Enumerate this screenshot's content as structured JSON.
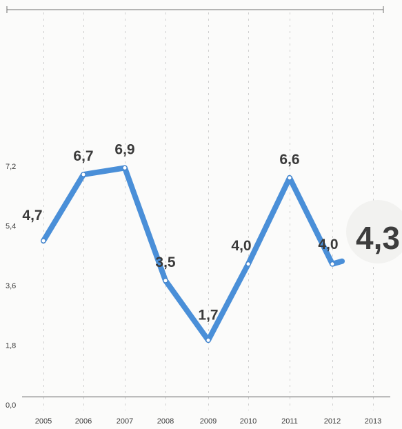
{
  "chart_data": {
    "type": "line",
    "x": [
      "2005",
      "2006",
      "2007",
      "2008",
      "2009",
      "2010",
      "2011",
      "2012",
      "2013"
    ],
    "series": [
      {
        "values": [
          4.7,
          6.7,
          6.9,
          3.5,
          1.7,
          4.0,
          6.6,
          4.0,
          4.3
        ],
        "labels": [
          "4,7",
          "6,7",
          "6,9",
          "3,5",
          "1,7",
          "4,0",
          "6,6",
          "4,0",
          "4,3"
        ],
        "color": "#4a8fd8"
      }
    ],
    "y_ticks": [
      0.0,
      1.8,
      3.6,
      5.4,
      7.2
    ],
    "y_tick_labels": [
      "0,0",
      "1,8",
      "3,6",
      "5,4",
      "7,2"
    ],
    "ylim": [
      0,
      7.2
    ],
    "grid": "vertical dashed lines at x categories",
    "highlight_last_value": "4,3"
  }
}
